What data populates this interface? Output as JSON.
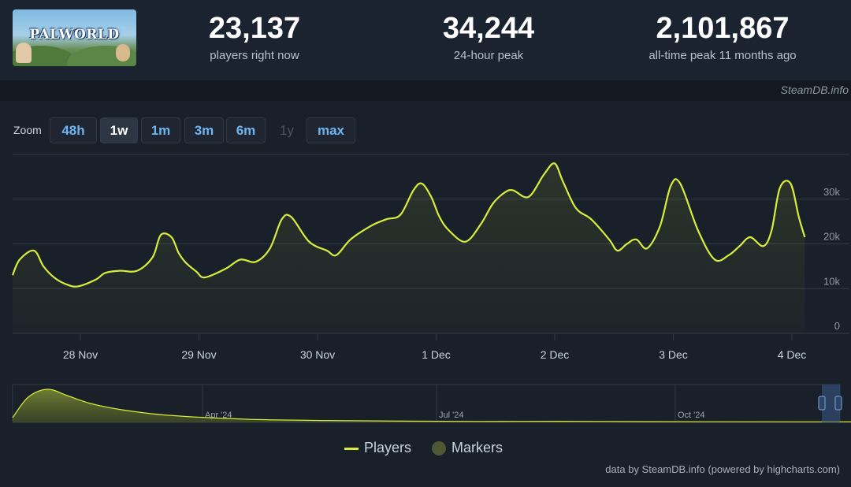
{
  "header": {
    "logo_text": "PALWORLD",
    "stats": [
      {
        "value": "23,137",
        "label": "players right now"
      },
      {
        "value": "34,244",
        "label": "24-hour peak"
      },
      {
        "value": "2,101,867",
        "label": "all-time peak 11 months ago"
      }
    ],
    "source": "SteamDB.info"
  },
  "zoom": {
    "label": "Zoom",
    "buttons": [
      {
        "label": "48h",
        "state": "normal"
      },
      {
        "label": "1w",
        "state": "active"
      },
      {
        "label": "1m",
        "state": "normal"
      },
      {
        "label": "3m",
        "state": "normal"
      },
      {
        "label": "6m",
        "state": "normal"
      },
      {
        "label": "1y",
        "state": "disabled"
      },
      {
        "label": "max",
        "state": "normal"
      }
    ]
  },
  "legend": {
    "players": "Players",
    "markers": "Markers"
  },
  "credits": "data by SteamDB.info (powered by highcharts.com)",
  "colors": {
    "line": "#d8ec3a",
    "background": "#1a2029",
    "grid": "#313a47",
    "marker": "#4e5837"
  },
  "chart_data": [
    {
      "type": "area",
      "title": "",
      "xlabel": "",
      "ylabel": "",
      "x_tick_labels": [
        "28 Nov",
        "29 Nov",
        "30 Nov",
        "1 Dec",
        "2 Dec",
        "3 Dec",
        "4 Dec"
      ],
      "y_tick_labels": [
        "0",
        "10k",
        "20k",
        "30k"
      ],
      "ylim": [
        0,
        40000
      ],
      "grid": true,
      "series": [
        {
          "name": "Players",
          "x_days": [
            0.0,
            0.06,
            0.18,
            0.26,
            0.35,
            0.45,
            0.55,
            0.7,
            0.78,
            0.9,
            1.05,
            1.18,
            1.25,
            1.34,
            1.4,
            1.46,
            1.55,
            1.62,
            1.8,
            1.92,
            2.05,
            2.17,
            2.27,
            2.35,
            2.5,
            2.65,
            2.73,
            2.85,
            3.02,
            3.15,
            3.27,
            3.38,
            3.45,
            3.53,
            3.6,
            3.68,
            3.82,
            3.95,
            4.05,
            4.15,
            4.22,
            4.35,
            4.48,
            4.57,
            4.64,
            4.75,
            4.88,
            5.03,
            5.1,
            5.18,
            5.26,
            5.35,
            5.46,
            5.55,
            5.63,
            5.78,
            5.92,
            6.04,
            6.13,
            6.22,
            6.33,
            6.4,
            6.47,
            6.56,
            6.63,
            6.68
          ],
          "values": [
            13000,
            16500,
            18500,
            15000,
            12500,
            11000,
            10500,
            12000,
            13500,
            14000,
            14000,
            17000,
            22000,
            21500,
            18000,
            15800,
            13800,
            12500,
            14500,
            16500,
            16000,
            19000,
            25500,
            26000,
            20500,
            18500,
            17500,
            21000,
            24000,
            25500,
            26500,
            32000,
            33500,
            30500,
            26000,
            23000,
            20500,
            24500,
            29000,
            31500,
            32000,
            30500,
            35500,
            38000,
            34000,
            28000,
            25500,
            21000,
            18500,
            20000,
            21000,
            19000,
            24000,
            33000,
            33500,
            23000,
            16500,
            17500,
            19500,
            21500,
            19500,
            23000,
            32500,
            33500,
            26000,
            21500
          ]
        },
        {
          "name": "Markers",
          "values": []
        }
      ]
    },
    {
      "type": "area",
      "title": "",
      "x_tick_labels": [
        "Apr '24",
        "Jul '24",
        "Oct '24"
      ],
      "series": [
        {
          "name": "Players",
          "x_months": [
            0.0,
            0.2,
            0.45,
            0.7,
            1.0,
            1.4,
            2.0,
            3.0,
            4.0,
            5.0,
            6.0,
            7.0,
            8.0,
            9.0,
            10.0,
            11.0,
            11.7
          ],
          "values": [
            300000,
            1600000,
            2101867,
            1700000,
            1200000,
            800000,
            450000,
            200000,
            120000,
            80000,
            60000,
            70000,
            50000,
            40000,
            35000,
            30000,
            25000
          ]
        }
      ]
    }
  ]
}
